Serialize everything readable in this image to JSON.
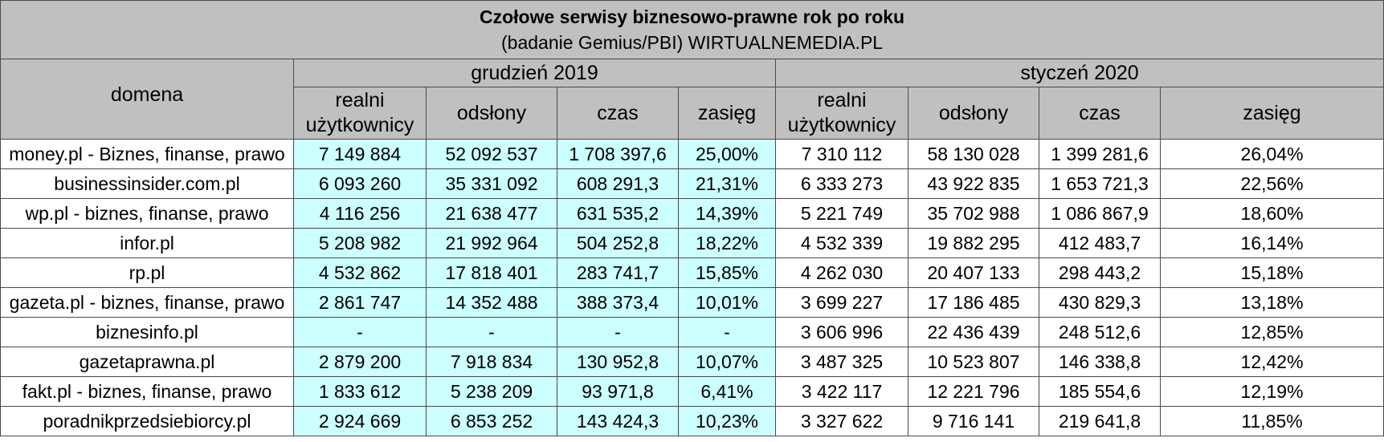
{
  "title": {
    "main": "Czołowe serwisy biznesowo-prawne rok po roku",
    "sub": "(badanie Gemius/PBI) WIRTUALNEMEDIA.PL"
  },
  "header": {
    "domain_label": "domena",
    "period_1": "grudzień 2019",
    "period_2": "styczeń 2020",
    "col_users": "realni użytkownicy",
    "col_views": "odsłony",
    "col_time": "czas",
    "col_reach": "zasięg"
  },
  "colors": {
    "header_bg": "#c0c0c0",
    "dec_2019_bg": "#ccffff",
    "jan_2020_bg": "#ffffff",
    "border": "#4a4a4a"
  },
  "rows": [
    {
      "domain": "money.pl - Biznes, finanse, prawo",
      "dec": [
        "7 149 884",
        "52 092 537",
        "1 708 397,6",
        "25,00%"
      ],
      "jan": [
        "7 310 112",
        "58 130 028",
        "1 399 281,6",
        "26,04%"
      ]
    },
    {
      "domain": "businessinsider.com.pl",
      "dec": [
        "6 093 260",
        "35 331 092",
        "608 291,3",
        "21,31%"
      ],
      "jan": [
        "6 333 273",
        "43 922 835",
        "1 653 721,3",
        "22,56%"
      ]
    },
    {
      "domain": "wp.pl - biznes, finanse, prawo",
      "dec": [
        "4 116 256",
        "21 638 477",
        "631 535,2",
        "14,39%"
      ],
      "jan": [
        "5 221 749",
        "35 702 988",
        "1 086 867,9",
        "18,60%"
      ]
    },
    {
      "domain": "infor.pl",
      "dec": [
        "5 208 982",
        "21 992 964",
        "504 252,8",
        "18,22%"
      ],
      "jan": [
        "4 532 339",
        "19 882 295",
        "412 483,7",
        "16,14%"
      ]
    },
    {
      "domain": "rp.pl",
      "dec": [
        "4 532 862",
        "17 818 401",
        "283 741,7",
        "15,85%"
      ],
      "jan": [
        "4 262 030",
        "20 407 133",
        "298 443,2",
        "15,18%"
      ]
    },
    {
      "domain": "gazeta.pl - biznes, finanse, prawo",
      "dec": [
        "2 861 747",
        "14 352 488",
        "388 373,4",
        "10,01%"
      ],
      "jan": [
        "3 699 227",
        "17 186 485",
        "430 829,3",
        "13,18%"
      ]
    },
    {
      "domain": "biznesinfo.pl",
      "dec": [
        "-",
        "-",
        "-",
        "-"
      ],
      "jan": [
        "3 606 996",
        "22 436 439",
        "248 512,6",
        "12,85%"
      ]
    },
    {
      "domain": "gazetaprawna.pl",
      "dec": [
        "2 879 200",
        "7 918 834",
        "130 952,8",
        "10,07%"
      ],
      "jan": [
        "3 487 325",
        "10 523 807",
        "146 338,8",
        "12,42%"
      ]
    },
    {
      "domain": "fakt.pl - biznes, finanse, prawo",
      "dec": [
        "1 833 612",
        "5 238 209",
        "93 971,8",
        "6,41%"
      ],
      "jan": [
        "3 422 117",
        "12 221 796",
        "185 554,6",
        "12,19%"
      ]
    },
    {
      "domain": "poradnikprzedsiebiorcy.pl",
      "dec": [
        "2 924 669",
        "6 853 252",
        "143 424,3",
        "10,23%"
      ],
      "jan": [
        "3 327 622",
        "9 716 141",
        "219 641,8",
        "11,85%"
      ]
    }
  ]
}
